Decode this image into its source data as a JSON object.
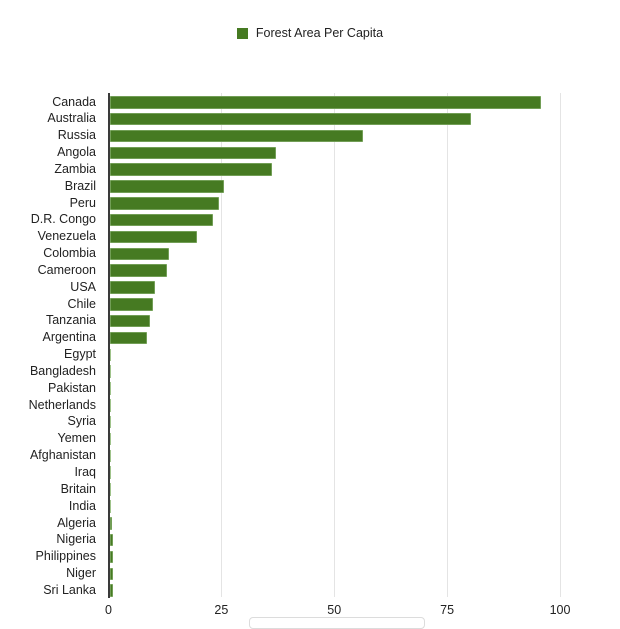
{
  "chart_data": {
    "type": "bar",
    "orientation": "horizontal",
    "title": "",
    "xlabel": "",
    "ylabel": "",
    "legend": {
      "position": "top",
      "entries": [
        "Forest Area Per Capita"
      ]
    },
    "series": [
      {
        "name": "Forest Area Per Capita",
        "color": "#467a22",
        "values": [
          95.8,
          80.3,
          56.4,
          37.1,
          36.2,
          25.6,
          24.5,
          23.1,
          19.6,
          13.4,
          13.0,
          10.3,
          9.9,
          9.2,
          8.5,
          0.05,
          0.05,
          0.1,
          0.2,
          0.3,
          0.3,
          0.4,
          0.4,
          0.5,
          0.6,
          0.8,
          0.9,
          0.9,
          1.0,
          1.0
        ]
      }
    ],
    "categories": [
      "Canada",
      "Australia",
      "Russia",
      "Angola",
      "Zambia",
      "Brazil",
      "Peru",
      "D.R. Congo",
      "Venezuela",
      "Colombia",
      "Cameroon",
      "USA",
      "Chile",
      "Tanzania",
      "Argentina",
      "Egypt",
      "Bangladesh",
      "Pakistan",
      "Netherlands",
      "Syria",
      "Yemen",
      "Afghanistan",
      "Iraq",
      "Britain",
      "India",
      "Algeria",
      "Nigeria",
      "Philippines",
      "Niger",
      "Sri Lanka"
    ],
    "xlim": [
      0,
      100
    ],
    "xticks": [
      "0",
      "25",
      "50",
      "75",
      "100"
    ],
    "grid": true
  },
  "legend": {
    "label": "Forest Area Per Capita",
    "color": "#467a22"
  }
}
